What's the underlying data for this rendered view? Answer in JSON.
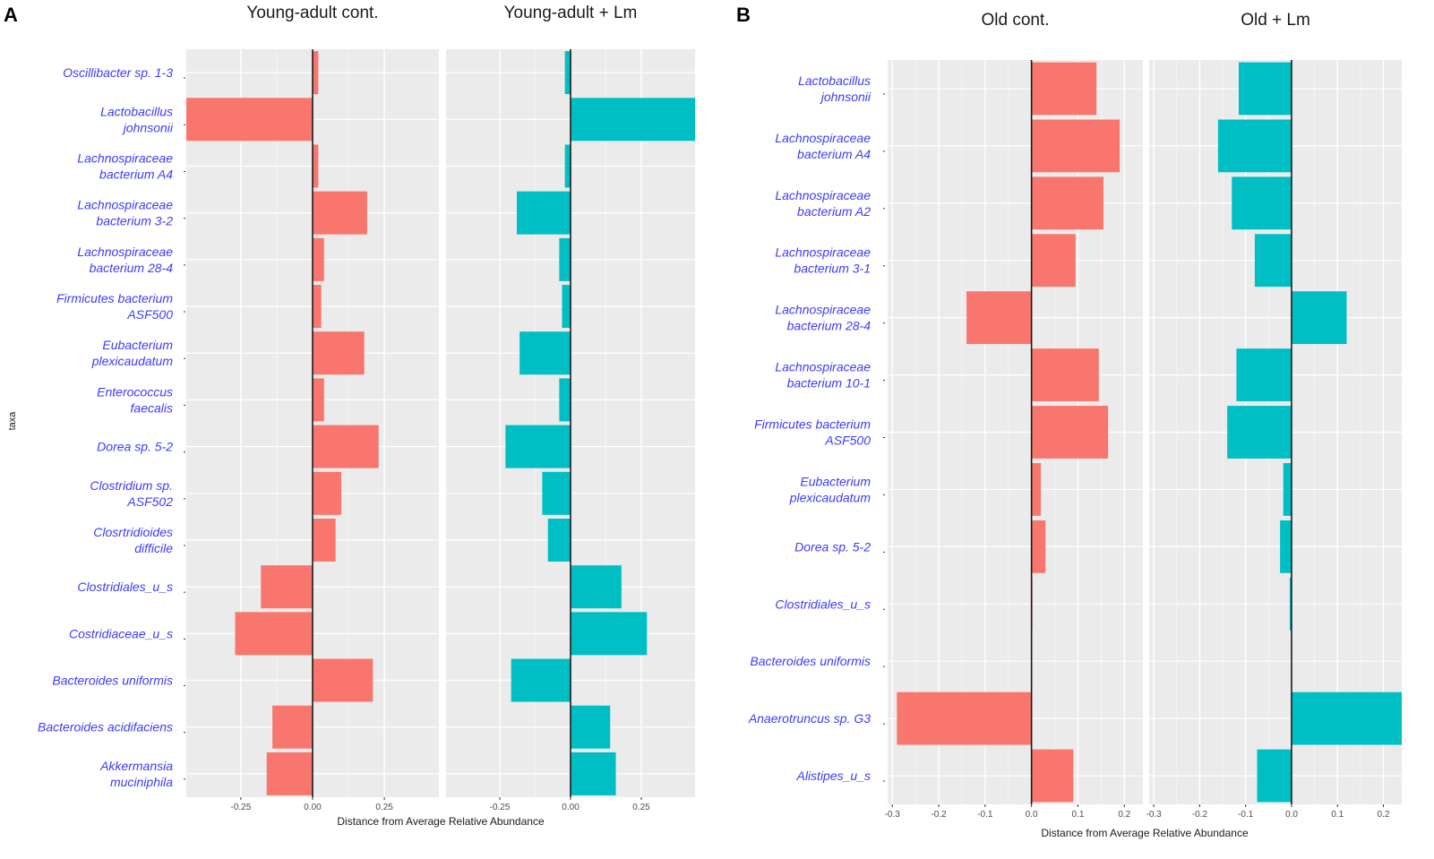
{
  "colors": {
    "control": "#f8766d",
    "infected": "#00bfc4",
    "panel_bg": "#ebebeb",
    "grid": "#ffffff",
    "label": "#3b3bff",
    "zero_line": "#1a1a1a"
  },
  "chart_data": [
    {
      "panel": "A",
      "type": "bar",
      "orientation": "horizontal",
      "ylabel": "taxa",
      "xlabel": "Distance from Average Relative Abundance",
      "xlim": [
        -0.44,
        0.44
      ],
      "xticks": [
        -0.25,
        0.0,
        0.25
      ],
      "xtick_labels": [
        "-0.25",
        "0.00",
        "0.25"
      ],
      "categories": [
        "Oscillibacter sp. 1-3",
        "Lactobacillus|johnsonii",
        "Lachnospiraceae|bacterium A4",
        "Lachnospiraceae|bacterium 3-2",
        "Lachnospiraceae|bacterium 28-4",
        "Firmicutes bacterium|ASF500",
        "Eubacterium|plexicaudatum",
        "Enterococcus|faecalis",
        "Dorea sp. 5-2",
        "Clostridium sp.|ASF502",
        "Closrtridioides|difficile",
        "Clostridiales_u_s",
        "Costridiaceae_u_s",
        "Bacteroides uniformis",
        "Bacteroides acidifaciens",
        "Akkermansia|muciniphila"
      ],
      "series": [
        {
          "name": "Young-adult  cont.",
          "color": "control",
          "values": [
            0.02,
            -0.44,
            0.02,
            0.19,
            0.04,
            0.03,
            0.18,
            0.04,
            0.23,
            0.1,
            0.08,
            -0.18,
            -0.27,
            0.21,
            -0.14,
            -0.16
          ]
        },
        {
          "name": "Young-adult  + Lm",
          "color": "infected",
          "values": [
            -0.02,
            0.44,
            -0.02,
            -0.19,
            -0.04,
            -0.03,
            -0.18,
            -0.04,
            -0.23,
            -0.1,
            -0.08,
            0.18,
            0.27,
            -0.21,
            0.14,
            0.16
          ]
        }
      ]
    },
    {
      "panel": "B",
      "type": "bar",
      "orientation": "horizontal",
      "ylabel": "",
      "xlabel": "Distance from Average Relative Abundance",
      "xlim": [
        -0.31,
        0.24
      ],
      "xticks": [
        -0.3,
        -0.2,
        -0.1,
        0.0,
        0.1,
        0.2
      ],
      "xtick_labels": [
        "-0.3",
        "-0.2",
        "-0.1",
        "0.0",
        "0.1",
        "0.2"
      ],
      "categories": [
        "Lactobacillus|johnsonii",
        "Lachnospiraceae|bacterium A4",
        "Lachnospiraceae|bacterium A2",
        "Lachnospiraceae|bacterium 3-1",
        "Lachnospiraceae|bacterium 28-4",
        "Lachnospiraceae|bacterium 10-1",
        "Firmicutes bacterium|ASF500",
        "Eubacterium|plexicaudatum",
        "Dorea sp. 5-2",
        "Clostridiales_u_s",
        "Bacteroides uniformis",
        "Anaerotruncus sp. G3",
        "Alistipes_u_s"
      ],
      "series": [
        {
          "name": "Old cont.",
          "color": "control",
          "values": [
            0.14,
            0.19,
            0.155,
            0.095,
            -0.14,
            0.145,
            0.165,
            0.02,
            0.03,
            0.002,
            0.001,
            -0.29,
            0.09
          ]
        },
        {
          "name": "Old + Lm",
          "color": "infected",
          "values": [
            -0.115,
            -0.16,
            -0.13,
            -0.08,
            0.12,
            -0.12,
            -0.14,
            -0.018,
            -0.025,
            -0.004,
            -0.001,
            0.24,
            -0.075
          ]
        }
      ]
    }
  ]
}
